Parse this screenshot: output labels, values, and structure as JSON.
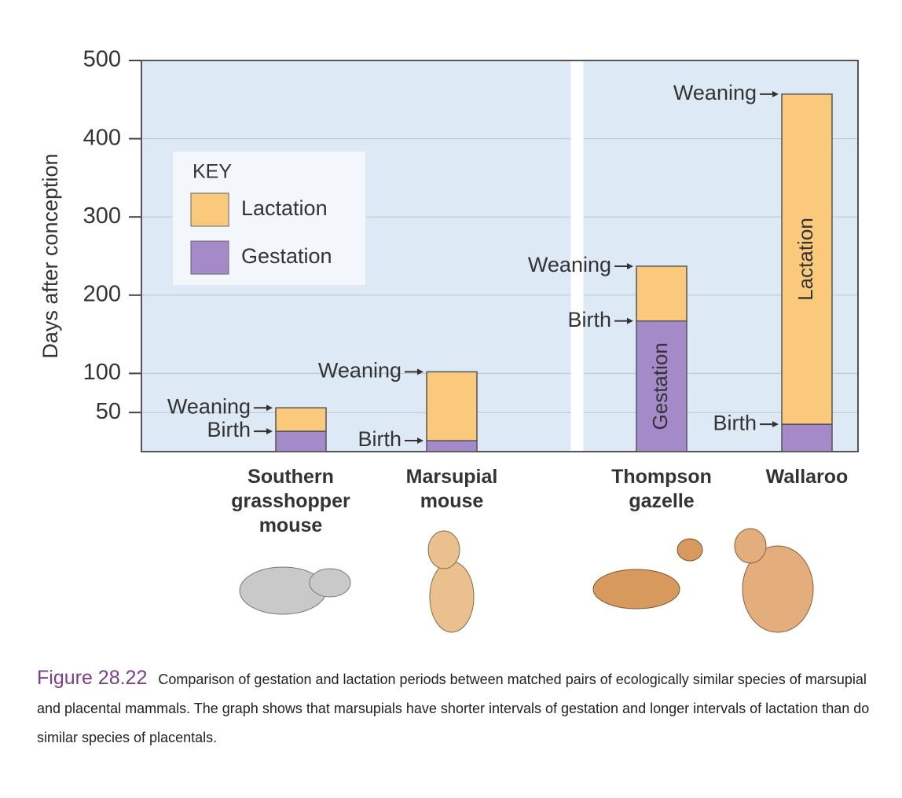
{
  "chart_data": {
    "type": "stacked_bar",
    "y_label": "Days after conception",
    "legend_title": "KEY",
    "categories": [
      "Southern grasshopper mouse",
      "Marsupial mouse",
      "Thompson gazelle",
      "Wallaroo"
    ],
    "series": [
      {
        "name": "Gestation",
        "color": "#a48ac8",
        "values": [
          26,
          14,
          167,
          35
        ],
        "end_labels": [
          "Birth",
          "Birth",
          "Birth",
          "Birth"
        ]
      },
      {
        "name": "Lactation",
        "color": "#fbc97c",
        "values": [
          30,
          88,
          70,
          422
        ],
        "end_labels": [
          "Weaning",
          "Weaning",
          "Weaning",
          "Weaning"
        ]
      }
    ],
    "ylim": [
      0,
      500
    ],
    "yticks": [
      50,
      100,
      200,
      300,
      400,
      500
    ],
    "grid": true
  },
  "caption": {
    "label": "Figure 28.22",
    "text": "Comparison of gestation and lactation periods between matched pairs of ecologically similar species of marsupial and placental mammals. The graph shows that marsupials have shorter intervals of gestation and longer intervals of lactation than do similar species of placentals."
  }
}
